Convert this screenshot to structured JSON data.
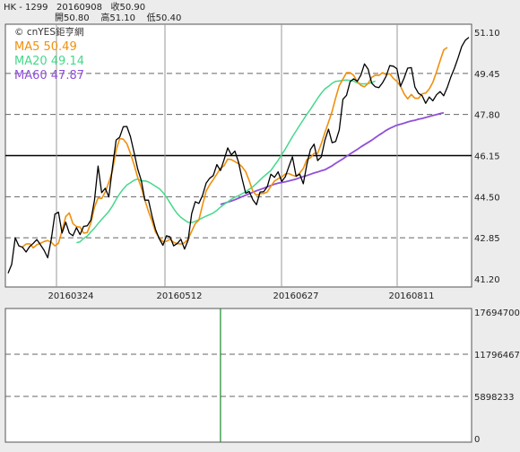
{
  "header": {
    "line1": "HK - 1299   20160908   收50.90",
    "line2": "開50.80    高51.10    低50.40"
  },
  "watermark": "© cnYES鉅亨網",
  "legend": [
    {
      "label": "MA5 50.49",
      "color": "#f0900c"
    },
    {
      "label": "MA20 49.14",
      "color": "#46d88c"
    },
    {
      "label": "MA60 47.87",
      "color": "#9050d8"
    }
  ],
  "colors": {
    "price": "#000000",
    "ma5": "#f0900c",
    "ma20": "#46d88c",
    "ma60": "#9050d8",
    "volume": "#1a8a2a"
  },
  "chart_data": [
    {
      "type": "line",
      "title": "HK - 1299",
      "x_tick_labels": [
        "20160324",
        "20160512",
        "20160627",
        "20160811"
      ],
      "y_tick_labels": [
        "51.10",
        "49.45",
        "47.80",
        "46.15",
        "44.50",
        "42.85",
        "41.20"
      ],
      "ylim": [
        41.2,
        51.1
      ],
      "x_index_range": [
        0,
        128
      ],
      "reference_line": 46.15,
      "series": [
        {
          "name": "Price",
          "x_start": 0,
          "values": [
            41.43,
            41.78,
            42.85,
            42.53,
            42.47,
            42.28,
            42.5,
            42.63,
            42.78,
            42.57,
            42.35,
            42.05,
            42.79,
            43.8,
            43.88,
            43.04,
            43.48,
            43.04,
            42.93,
            43.26,
            42.98,
            43.31,
            43.33,
            43.56,
            44.36,
            45.73,
            44.66,
            44.84,
            44.49,
            45.7,
            46.77,
            46.89,
            47.31,
            47.32,
            46.91,
            46.28,
            45.61,
            45.15,
            44.36,
            44.36,
            43.72,
            43.17,
            42.81,
            42.55,
            42.93,
            42.89,
            42.53,
            42.62,
            42.79,
            42.4,
            42.75,
            43.82,
            44.3,
            44.23,
            44.54,
            45.04,
            45.24,
            45.35,
            45.79,
            45.55,
            45.98,
            46.46,
            46.18,
            46.33,
            45.89,
            45.23,
            44.64,
            44.71,
            44.37,
            44.18,
            44.69,
            44.7,
            44.9,
            45.4,
            45.28,
            45.5,
            45.11,
            45.3,
            45.71,
            46.1,
            45.32,
            45.41,
            45.02,
            45.8,
            46.4,
            46.61,
            45.95,
            46.1,
            46.77,
            47.21,
            46.67,
            46.72,
            47.18,
            48.41,
            48.57,
            49.12,
            49.23,
            49.13,
            49.38,
            49.83,
            49.62,
            49.06,
            48.91,
            48.88,
            49.07,
            49.33,
            49.76,
            49.74,
            49.64,
            48.93,
            49.26,
            49.66,
            49.68,
            48.9,
            48.65,
            48.56,
            48.25,
            48.5,
            48.35,
            48.59,
            48.72,
            48.55,
            48.89,
            49.31,
            49.66,
            50.08,
            50.53,
            50.78,
            50.9
          ]
        },
        {
          "name": "MA5",
          "x_start": 4,
          "values": [
            42.49,
            42.6,
            42.61,
            42.45,
            42.57,
            42.63,
            42.7,
            42.74,
            42.67,
            42.53,
            42.63,
            43.13,
            43.7,
            43.85,
            43.42,
            43.3,
            43.28,
            43.04,
            43.06,
            43.45,
            44.08,
            44.45,
            44.43,
            44.69,
            45.08,
            45.55,
            46.36,
            46.83,
            46.81,
            46.63,
            46.24,
            45.79,
            45.27,
            44.87,
            44.36,
            43.91,
            43.52,
            43.07,
            42.85,
            42.69,
            42.71,
            42.79,
            42.67,
            42.62,
            42.6,
            42.65,
            42.8,
            43.11,
            43.42,
            43.56,
            44.15,
            44.72,
            44.98,
            45.19,
            45.41,
            45.64,
            45.74,
            46.01,
            45.99,
            45.91,
            45.83,
            45.7,
            45.51,
            45.14,
            44.71,
            44.56,
            44.62,
            44.63,
            44.69,
            44.92,
            45.13,
            45.22,
            45.29,
            45.41,
            45.43,
            45.36,
            45.32,
            45.45,
            45.63,
            46.0,
            46.06,
            46.24,
            46.24,
            46.63,
            47.07,
            47.49,
            47.92,
            48.47,
            48.96,
            49.22,
            49.48,
            49.48,
            49.37,
            49.12,
            48.97,
            48.91,
            49.05,
            49.29,
            49.38,
            49.37,
            49.48,
            49.4,
            49.44,
            49.25,
            49.13,
            48.94,
            48.63,
            48.43,
            48.6,
            48.45,
            48.45,
            48.63,
            48.66,
            48.83,
            49.09,
            49.51,
            49.96,
            50.39,
            50.49
          ]
        },
        {
          "name": "MA20",
          "x_start": 19,
          "values": [
            42.65,
            42.69,
            42.83,
            42.92,
            43.09,
            43.24,
            43.42,
            43.59,
            43.75,
            43.91,
            44.13,
            44.39,
            44.62,
            44.81,
            44.97,
            45.06,
            45.16,
            45.21,
            45.13,
            45.14,
            45.09,
            45.01,
            44.92,
            44.82,
            44.67,
            44.48,
            44.25,
            44.02,
            43.82,
            43.67,
            43.57,
            43.47,
            43.46,
            43.51,
            43.58,
            43.65,
            43.72,
            43.78,
            43.85,
            43.95,
            44.08,
            44.19,
            44.29,
            44.4,
            44.48,
            44.54,
            44.62,
            44.7,
            44.8,
            44.9,
            45.03,
            45.17,
            45.31,
            45.43,
            45.55,
            45.76,
            45.96,
            46.19,
            46.41,
            46.66,
            46.91,
            47.14,
            47.37,
            47.59,
            47.81,
            48.01,
            48.23,
            48.45,
            48.66,
            48.83,
            48.93,
            49.05,
            49.13,
            49.15,
            49.17,
            49.18,
            49.17,
            49.14,
            49.07,
            49.03,
            49.03,
            49.04,
            49.08,
            49.14
          ]
        },
        {
          "name": "MA60",
          "x_start": 59,
          "values": [
            44.19,
            44.23,
            44.28,
            44.33,
            44.38,
            44.44,
            44.5,
            44.56,
            44.62,
            44.68,
            44.74,
            44.79,
            44.84,
            44.9,
            44.95,
            45.0,
            45.04,
            45.07,
            45.1,
            45.13,
            45.17,
            45.21,
            45.26,
            45.31,
            45.35,
            45.4,
            45.45,
            45.49,
            45.54,
            45.58,
            45.66,
            45.74,
            45.84,
            45.93,
            46.02,
            46.12,
            46.22,
            46.31,
            46.4,
            46.5,
            46.59,
            46.68,
            46.77,
            46.87,
            46.97,
            47.06,
            47.16,
            47.24,
            47.31,
            47.37,
            47.41,
            47.45,
            47.5,
            47.54,
            47.57,
            47.61,
            47.64,
            47.68,
            47.72,
            47.76,
            47.8,
            47.84,
            47.87
          ]
        }
      ]
    },
    {
      "type": "bar",
      "title": "Volume",
      "y_tick_labels": [
        "17694700",
        "11796467",
        "5898233",
        "0"
      ],
      "ylim": [
        0,
        17694700
      ],
      "values": [],
      "marker_index": 59
    }
  ]
}
